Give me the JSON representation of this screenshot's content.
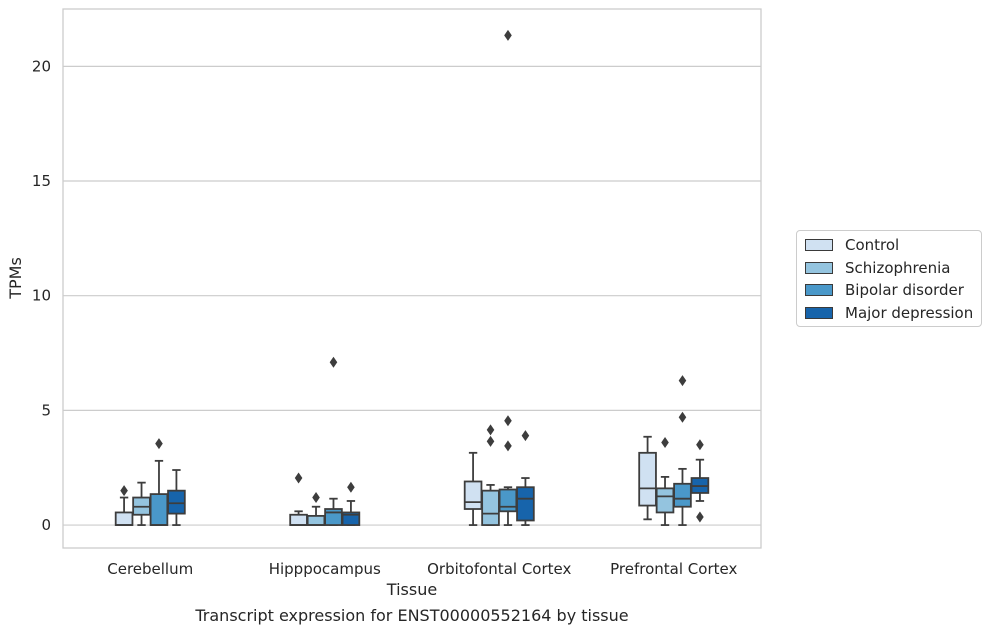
{
  "chart_data": {
    "type": "box",
    "caption": "Transcript expression for ENST00000552164 by tissue",
    "xlabel": "Tissue",
    "ylabel": "TPMs",
    "ylim": [
      -1,
      22.5
    ],
    "yticks": [
      0,
      5,
      10,
      15,
      20
    ],
    "grid": "horizontal",
    "legend_position": "right",
    "categories": [
      "Cerebellum",
      "Hipppocampus",
      "Orbitofontal Cortex",
      "Prefrontal Cortex"
    ],
    "series": [
      {
        "name": "Control",
        "color": "#d0e1f2",
        "boxes": [
          {
            "whislo": 0,
            "q1": 0,
            "med": 0,
            "q3": 0.55,
            "whishi": 1.2,
            "fliers": [
              1.5
            ]
          },
          {
            "whislo": 0,
            "q1": 0,
            "med": 0,
            "q3": 0.45,
            "whishi": 0.6,
            "fliers": [
              2.05
            ]
          },
          {
            "whislo": 0,
            "q1": 0.7,
            "med": 1.0,
            "q3": 1.9,
            "whishi": 3.15,
            "fliers": []
          },
          {
            "whislo": 0.25,
            "q1": 0.85,
            "med": 1.6,
            "q3": 3.15,
            "whishi": 3.85,
            "fliers": []
          }
        ]
      },
      {
        "name": "Schizophrenia",
        "color": "#94c4df",
        "boxes": [
          {
            "whislo": 0,
            "q1": 0.45,
            "med": 0.8,
            "q3": 1.2,
            "whishi": 1.85,
            "fliers": []
          },
          {
            "whislo": 0,
            "q1": 0,
            "med": 0,
            "q3": 0.4,
            "whishi": 0.8,
            "fliers": [
              1.2
            ]
          },
          {
            "whislo": 0,
            "q1": 0,
            "med": 0.5,
            "q3": 1.5,
            "whishi": 1.75,
            "fliers": [
              3.65,
              4.15
            ]
          },
          {
            "whislo": 0,
            "q1": 0.55,
            "med": 1.25,
            "q3": 1.6,
            "whishi": 2.1,
            "fliers": [
              3.6
            ]
          }
        ]
      },
      {
        "name": "Bipolar disorder",
        "color": "#4a98c9",
        "boxes": [
          {
            "whislo": 0,
            "q1": 0,
            "med": 0,
            "q3": 1.35,
            "whishi": 2.8,
            "fliers": [
              3.55
            ]
          },
          {
            "whislo": 0,
            "q1": 0,
            "med": 0.55,
            "q3": 0.7,
            "whishi": 1.15,
            "fliers": [
              7.1
            ]
          },
          {
            "whislo": 0,
            "q1": 0.6,
            "med": 0.8,
            "q3": 1.55,
            "whishi": 1.65,
            "fliers": [
              3.45,
              4.55,
              21.35
            ]
          },
          {
            "whislo": 0,
            "q1": 0.8,
            "med": 1.15,
            "q3": 1.8,
            "whishi": 2.45,
            "fliers": [
              4.7,
              6.3
            ]
          }
        ]
      },
      {
        "name": "Major depression",
        "color": "#1764ab",
        "boxes": [
          {
            "whislo": 0,
            "q1": 0.5,
            "med": 0.95,
            "q3": 1.5,
            "whishi": 2.4,
            "fliers": []
          },
          {
            "whislo": 0,
            "q1": 0,
            "med": 0.45,
            "q3": 0.55,
            "whishi": 1.05,
            "fliers": [
              1.65
            ]
          },
          {
            "whislo": 0,
            "q1": 0.2,
            "med": 1.15,
            "q3": 1.65,
            "whishi": 2.05,
            "fliers": [
              3.9
            ]
          },
          {
            "whislo": 1.05,
            "q1": 1.4,
            "med": 1.7,
            "q3": 2.05,
            "whishi": 2.85,
            "fliers": [
              0.35,
              3.5
            ]
          }
        ]
      }
    ]
  }
}
